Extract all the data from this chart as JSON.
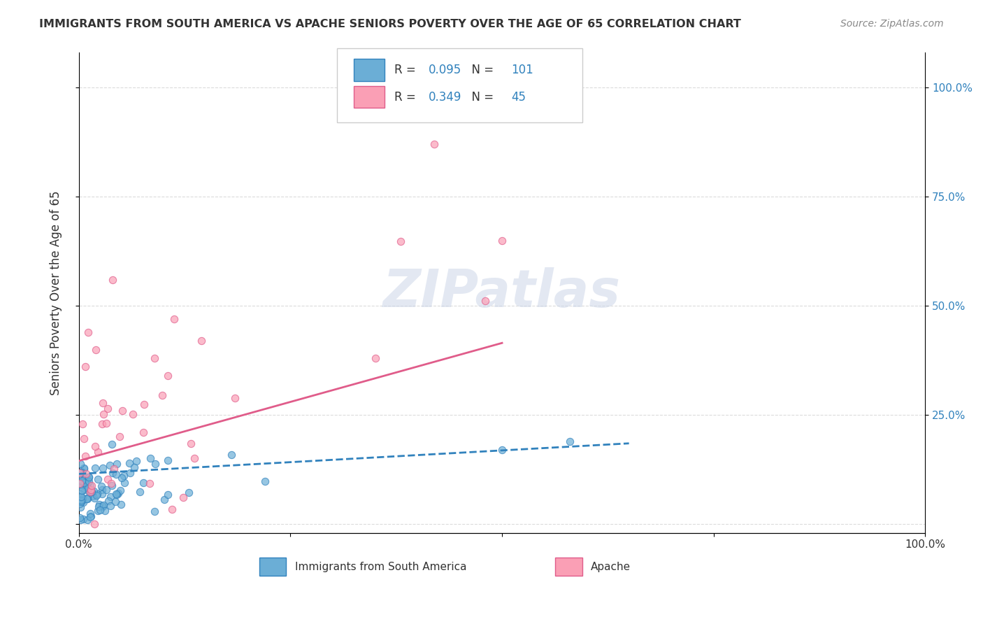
{
  "title": "IMMIGRANTS FROM SOUTH AMERICA VS APACHE SENIORS POVERTY OVER THE AGE OF 65 CORRELATION CHART",
  "source": "Source: ZipAtlas.com",
  "ylabel": "Seniors Poverty Over the Age of 65",
  "legend_label_1": "Immigrants from South America",
  "legend_label_2": "Apache",
  "r1": 0.095,
  "n1": 101,
  "r2": 0.349,
  "n2": 45,
  "color_blue": "#6baed6",
  "color_pink": "#fa9fb5",
  "color_blue_dark": "#3182bd",
  "color_pink_dark": "#e05c8a"
}
